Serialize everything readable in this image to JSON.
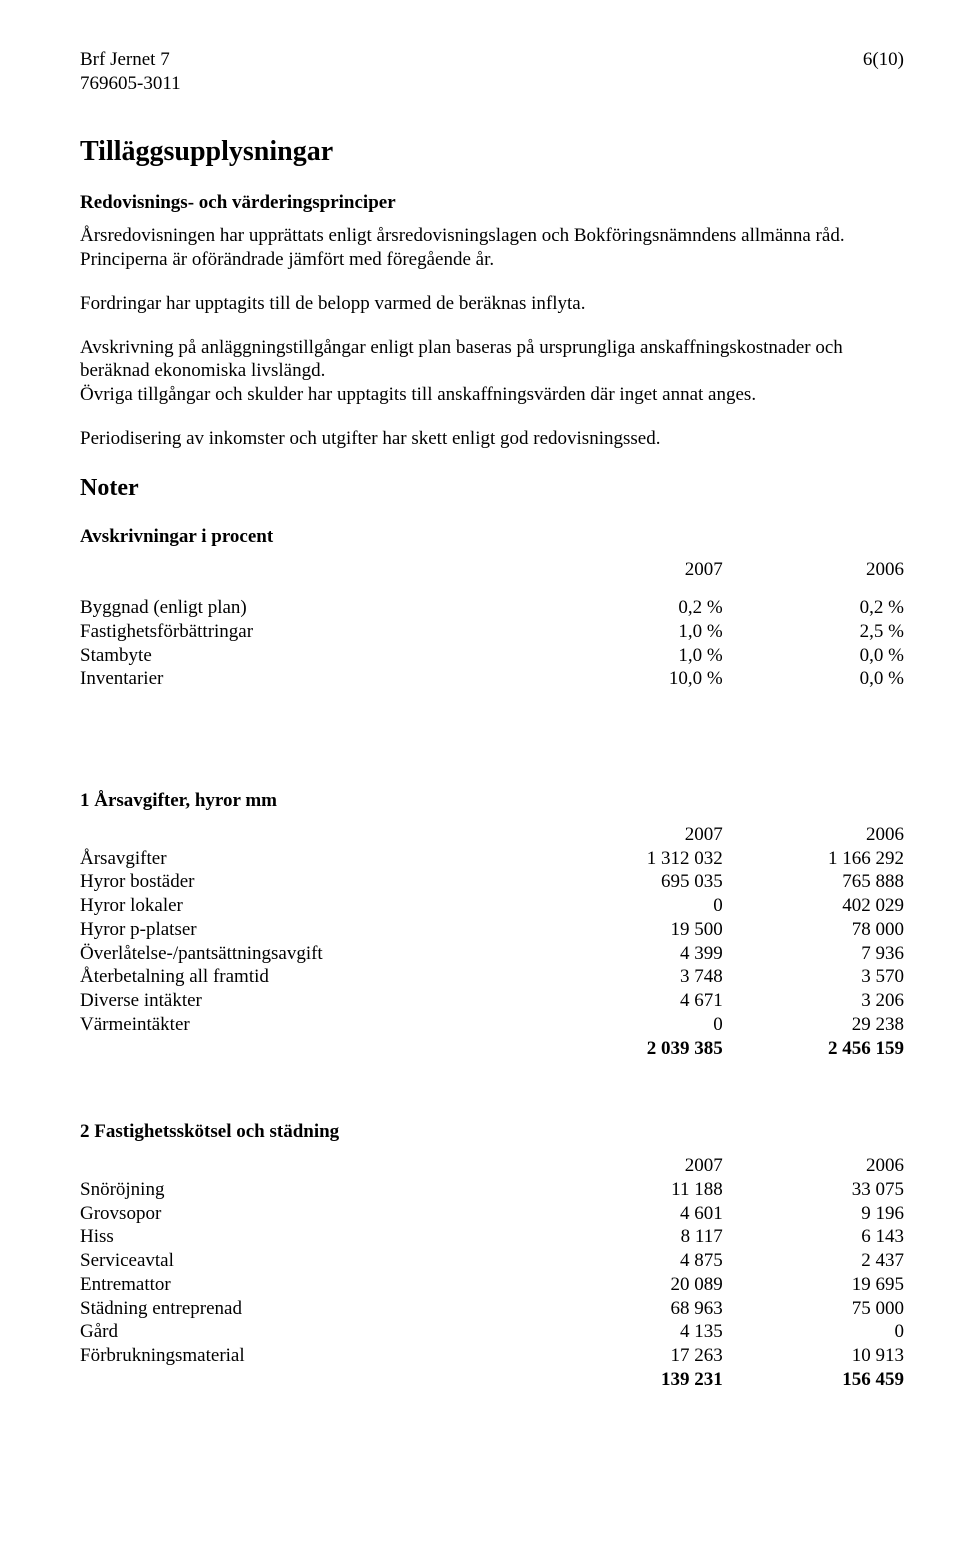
{
  "header": {
    "org_name": "Brf Jernet 7",
    "org_number": "769605-3011",
    "page": "6(10)"
  },
  "title": "Tilläggsupplysningar",
  "subheading1": "Redovisnings- och värderingsprinciper",
  "para1": "Årsredovisningen har upprättats enligt årsredovisningslagen och Bokföringsnämndens allmänna råd. Principerna är oförändrade jämfört med föregående år.",
  "para2": "Fordringar har upptagits till de belopp varmed de beräknas inflyta.",
  "para3": "Avskrivning på anläggningstillgångar enligt plan baseras på ursprungliga anskaffningskostnader och beräknad ekonomiska livslängd.",
  "para4": "Övriga tillgångar och skulder har upptagits till anskaffningsvärden där inget annat anges.",
  "para5": "Periodisering av inkomster och utgifter har skett enligt god redovisningssed.",
  "noter_title": "Noter",
  "avskr": {
    "title": "Avskrivningar i procent",
    "year1": "2007",
    "year2": "2006",
    "rows": [
      {
        "label": "Byggnad (enligt plan)",
        "v1": "0,2 %",
        "v2": "0,2 %"
      },
      {
        "label": "Fastighetsförbättringar",
        "v1": "1,0 %",
        "v2": "2,5 %"
      },
      {
        "label": "Stambyte",
        "v1": "1,0 %",
        "v2": "0,0 %"
      },
      {
        "label": "Inventarier",
        "v1": "10,0 %",
        "v2": "0,0 %"
      }
    ]
  },
  "sec1": {
    "title": "1 Årsavgifter, hyror mm",
    "year1": "2007",
    "year2": "2006",
    "rows": [
      {
        "label": "Årsavgifter",
        "v1": "1 312 032",
        "v2": "1 166 292"
      },
      {
        "label": "Hyror bostäder",
        "v1": "695 035",
        "v2": "765 888"
      },
      {
        "label": "Hyror lokaler",
        "v1": "0",
        "v2": "402 029"
      },
      {
        "label": "Hyror p-platser",
        "v1": "19 500",
        "v2": "78 000"
      },
      {
        "label": "Överlåtelse-/pantsättningsavgift",
        "v1": "4 399",
        "v2": "7 936"
      },
      {
        "label": "Återbetalning all framtid",
        "v1": "3 748",
        "v2": "3 570"
      },
      {
        "label": "Diverse intäkter",
        "v1": "4 671",
        "v2": "3 206"
      },
      {
        "label": "Värmeintäkter",
        "v1": "0",
        "v2": "29 238"
      }
    ],
    "total": {
      "label": "",
      "v1": "2 039 385",
      "v2": "2 456 159"
    }
  },
  "sec2": {
    "title": "2 Fastighetsskötsel och städning",
    "year1": "2007",
    "year2": "2006",
    "rows": [
      {
        "label": "Snöröjning",
        "v1": "11 188",
        "v2": "33 075"
      },
      {
        "label": "Grovsopor",
        "v1": "4 601",
        "v2": "9 196"
      },
      {
        "label": "Hiss",
        "v1": "8 117",
        "v2": "6 143"
      },
      {
        "label": "Serviceavtal",
        "v1": "4 875",
        "v2": "2 437"
      },
      {
        "label": "Entremattor",
        "v1": "20 089",
        "v2": "19 695"
      },
      {
        "label": "Städning entreprenad",
        "v1": "68 963",
        "v2": "75 000"
      },
      {
        "label": "Gård",
        "v1": "4 135",
        "v2": "0"
      },
      {
        "label": "Förbrukningsmaterial",
        "v1": "17 263",
        "v2": "10 913"
      }
    ],
    "total": {
      "label": "",
      "v1": "139 231",
      "v2": "156 459"
    }
  }
}
